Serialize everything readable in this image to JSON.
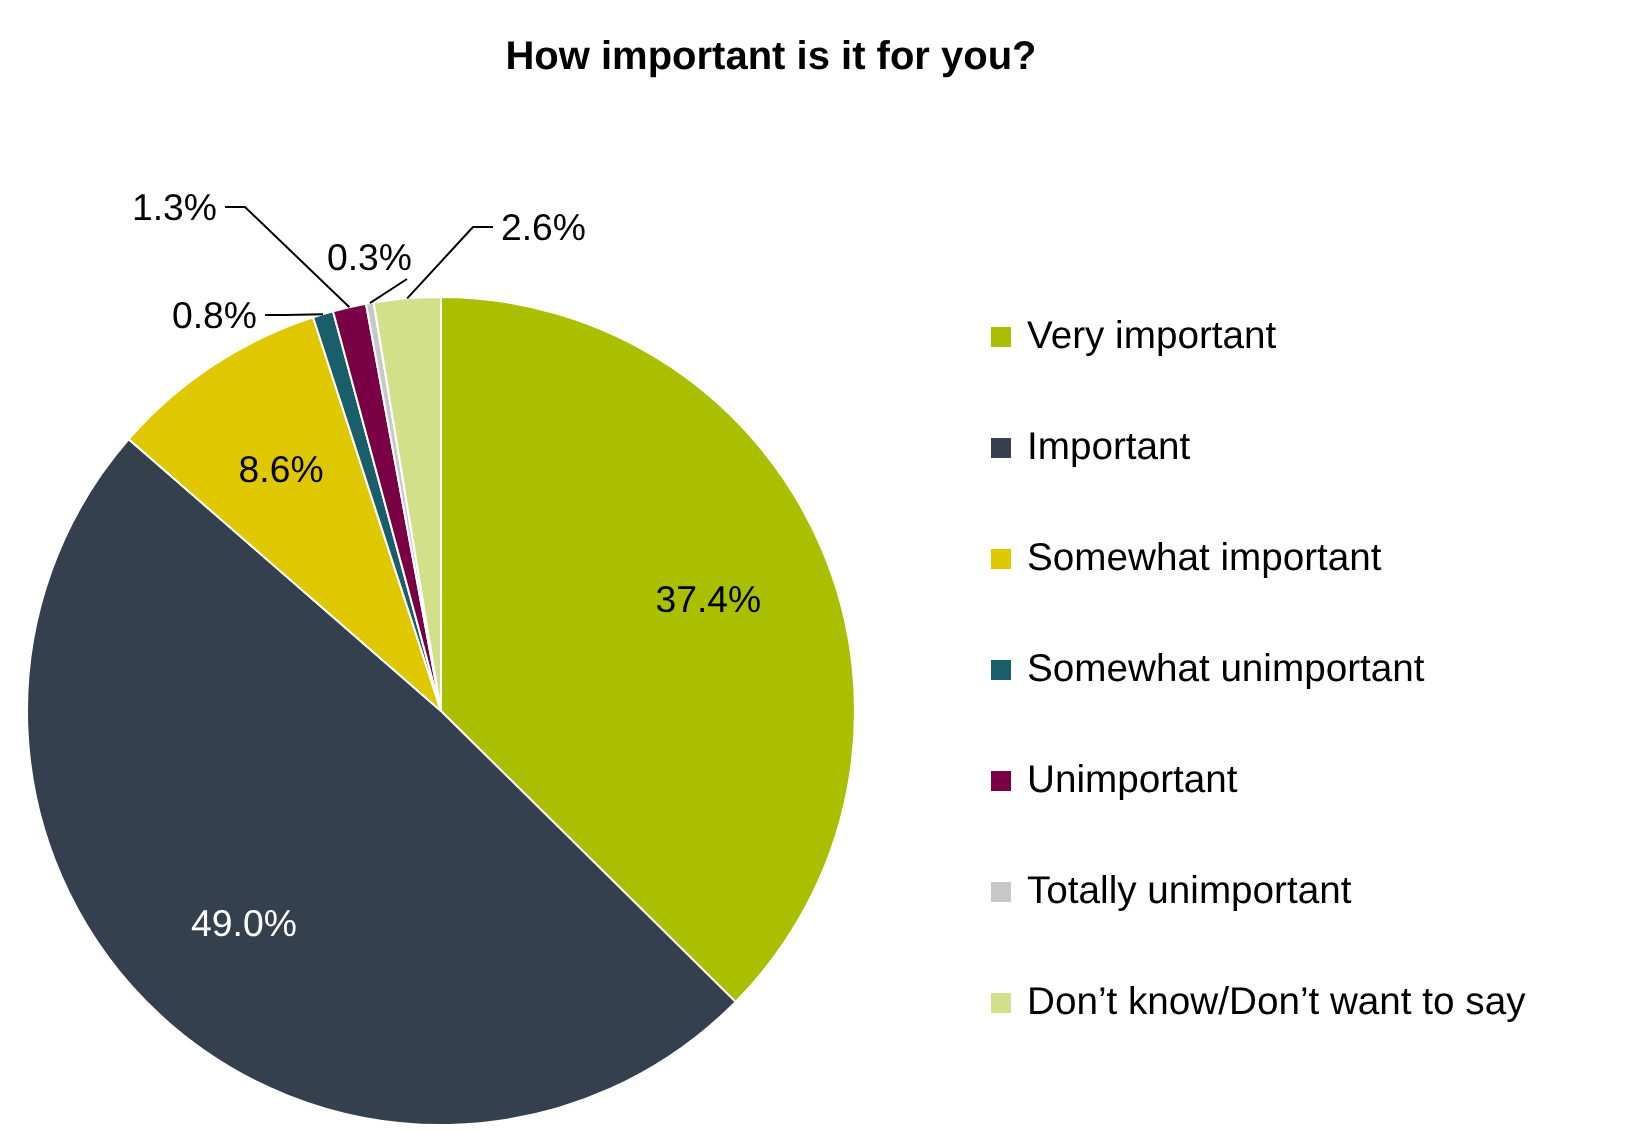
{
  "chart_data": {
    "type": "pie",
    "title": "How important is it for you?",
    "categories": [
      "Very important",
      "Important",
      "Somewhat important",
      "Somewhat unimportant",
      "Unimportant",
      "Totally unimportant",
      "Don’t know/Don’t want to say"
    ],
    "values": [
      37.4,
      49.0,
      8.6,
      0.8,
      1.3,
      0.3,
      2.6
    ],
    "colors": [
      "#a9bf00",
      "#34404d",
      "#e0c800",
      "#1b5e6b",
      "#7a0046",
      "#c8c8c8",
      "#d3e08a"
    ],
    "value_labels": [
      "37.4%",
      "49.0%",
      "8.6%",
      "0.8%",
      "1.3%",
      "0.3%",
      "2.6%"
    ],
    "legend": "right"
  }
}
